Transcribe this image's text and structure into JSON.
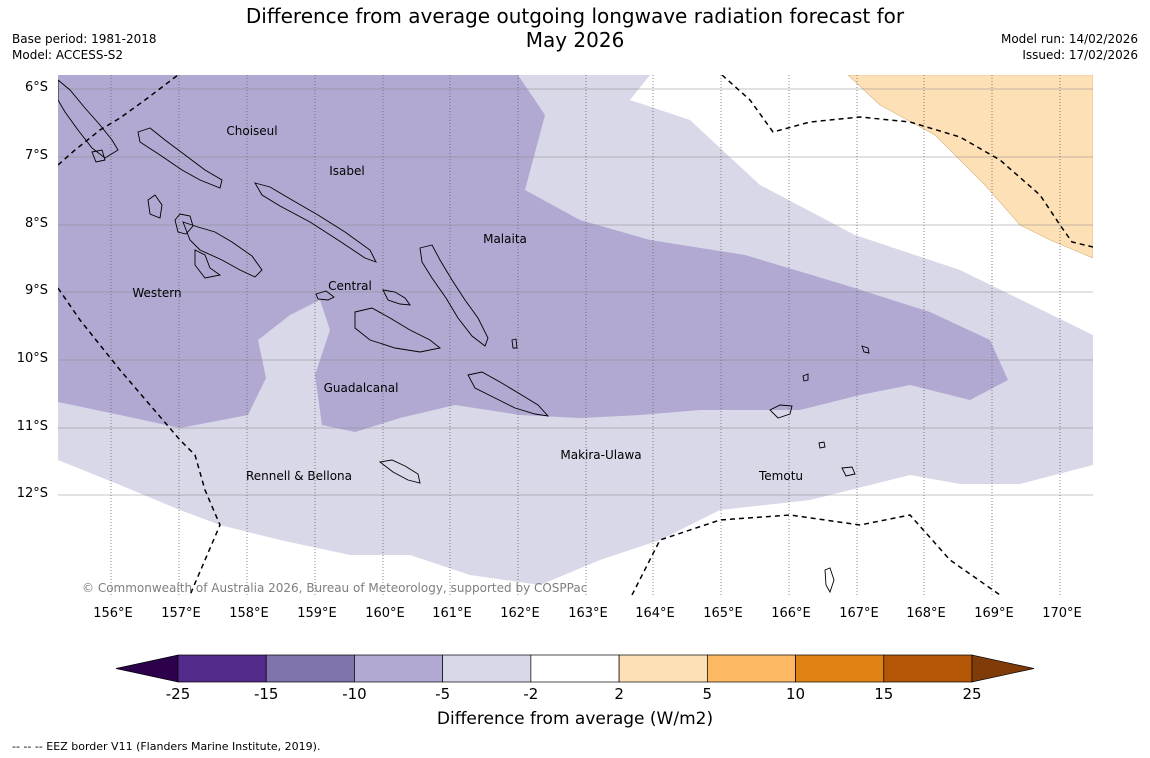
{
  "title": {
    "line1": "Difference from average outgoing longwave radiation forecast for",
    "line2": "May 2026"
  },
  "meta": {
    "base_period": "Base period: 1981-2018",
    "model": "Model: ACCESS-S2",
    "model_run": "Model run: 14/02/2026",
    "issued": "Issued: 17/02/2026"
  },
  "map": {
    "lat_labels": [
      "6°S",
      "7°S",
      "8°S",
      "9°S",
      "10°S",
      "11°S",
      "12°S"
    ],
    "lon_labels": [
      "156°E",
      "157°E",
      "158°E",
      "159°E",
      "160°E",
      "161°E",
      "162°E",
      "163°E",
      "164°E",
      "165°E",
      "166°E",
      "167°E",
      "168°E",
      "169°E",
      "170°E"
    ],
    "province_labels": [
      "Choiseul",
      "Isabel",
      "Malaita",
      "Western",
      "Central",
      "Guadalcanal",
      "Rennell & Bellona",
      "Makira-Ulawa",
      "Temotu"
    ],
    "copyright": "© Commonwealth of Australia 2026, Bureau of Meteorology, supported by COSPPac"
  },
  "legend": {
    "tick_labels": [
      "-25",
      "-15",
      "-10",
      "-5",
      "-2",
      "2",
      "5",
      "10",
      "15",
      "25"
    ],
    "bin_colors": [
      "#532a8a",
      "#8072aa",
      "#b1a9d2",
      "#d8d8e9",
      "#ffffff",
      "#fde0b6",
      "#fcb863",
      "#e08314",
      "#b35707"
    ],
    "under_color": "#2d004b",
    "over_color": "#7f3b08",
    "title": "Difference from average (W/m2)"
  },
  "footer": "--  --  -- EEZ border V11 (Flanders Marine Institute, 2019)."
}
